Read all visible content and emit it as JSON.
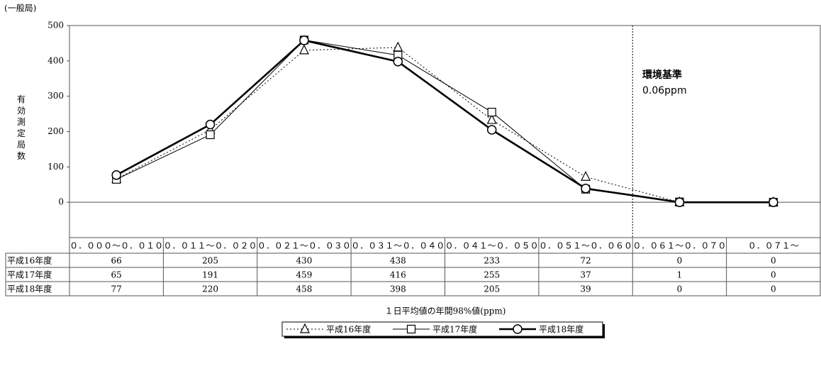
{
  "chart_data": {
    "type": "line",
    "unit_label": "(一般局)",
    "y_axis_label": "有効測定局数",
    "x_axis_label": "１日平均値の年間98%値(ppm)",
    "annotation": [
      "環境基準",
      "0.06ppm"
    ],
    "categories": [
      "０．０００～０．０１０",
      "０．０１１～０．０２０",
      "０．０２１～０．０３０",
      "０．０３１～０．０４０",
      "０．０４１～０．０５０",
      "０．０５１～０．０６０",
      "０．０６１～０．０７０",
      "０．０７１～"
    ],
    "series": [
      {
        "name": "平成16年度",
        "color": "#000000",
        "values": [
          66,
          205,
          430,
          438,
          233,
          72,
          0,
          0
        ]
      },
      {
        "name": "平成17年度",
        "color": "#000000",
        "values": [
          65,
          191,
          459,
          416,
          255,
          37,
          1,
          0
        ]
      },
      {
        "name": "平成18年度",
        "color": "#000000",
        "values": [
          77,
          220,
          458,
          398,
          205,
          39,
          0,
          0
        ]
      }
    ],
    "ylim": [
      -100,
      500
    ],
    "yticks": [
      0,
      100,
      200,
      300,
      400,
      500
    ]
  }
}
